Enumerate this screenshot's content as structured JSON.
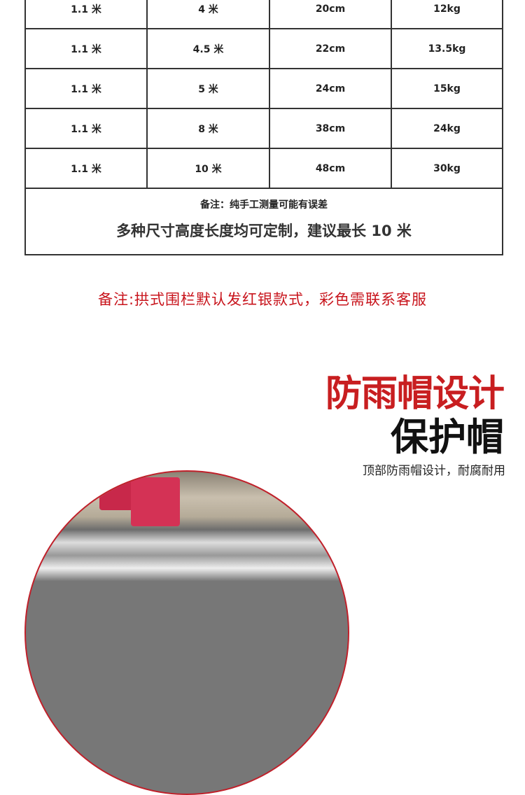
{
  "table": {
    "rows": [
      [
        "1.1 米",
        "4 米",
        "20cm",
        "12kg"
      ],
      [
        "1.1 米",
        "4.5 米",
        "22cm",
        "13.5kg"
      ],
      [
        "1.1 米",
        "5 米",
        "24cm",
        "15kg"
      ],
      [
        "1.1 米",
        "8 米",
        "38cm",
        "24kg"
      ],
      [
        "1.1 米",
        "10 米",
        "48cm",
        "30kg"
      ]
    ],
    "note": "备注：纯手工测量可能有误差",
    "custom_note": "多种尺寸高度长度均可定制，建议最长 10 米"
  },
  "remark": "备注:拱式围栏默认发红银款式，彩色需联系客服",
  "feature": {
    "title": "防雨帽设计",
    "subtitle": "保护帽",
    "description": "顶部防雨帽设计，耐腐耐用"
  },
  "colors": {
    "accent": "#c81e20",
    "border": "#333333"
  }
}
